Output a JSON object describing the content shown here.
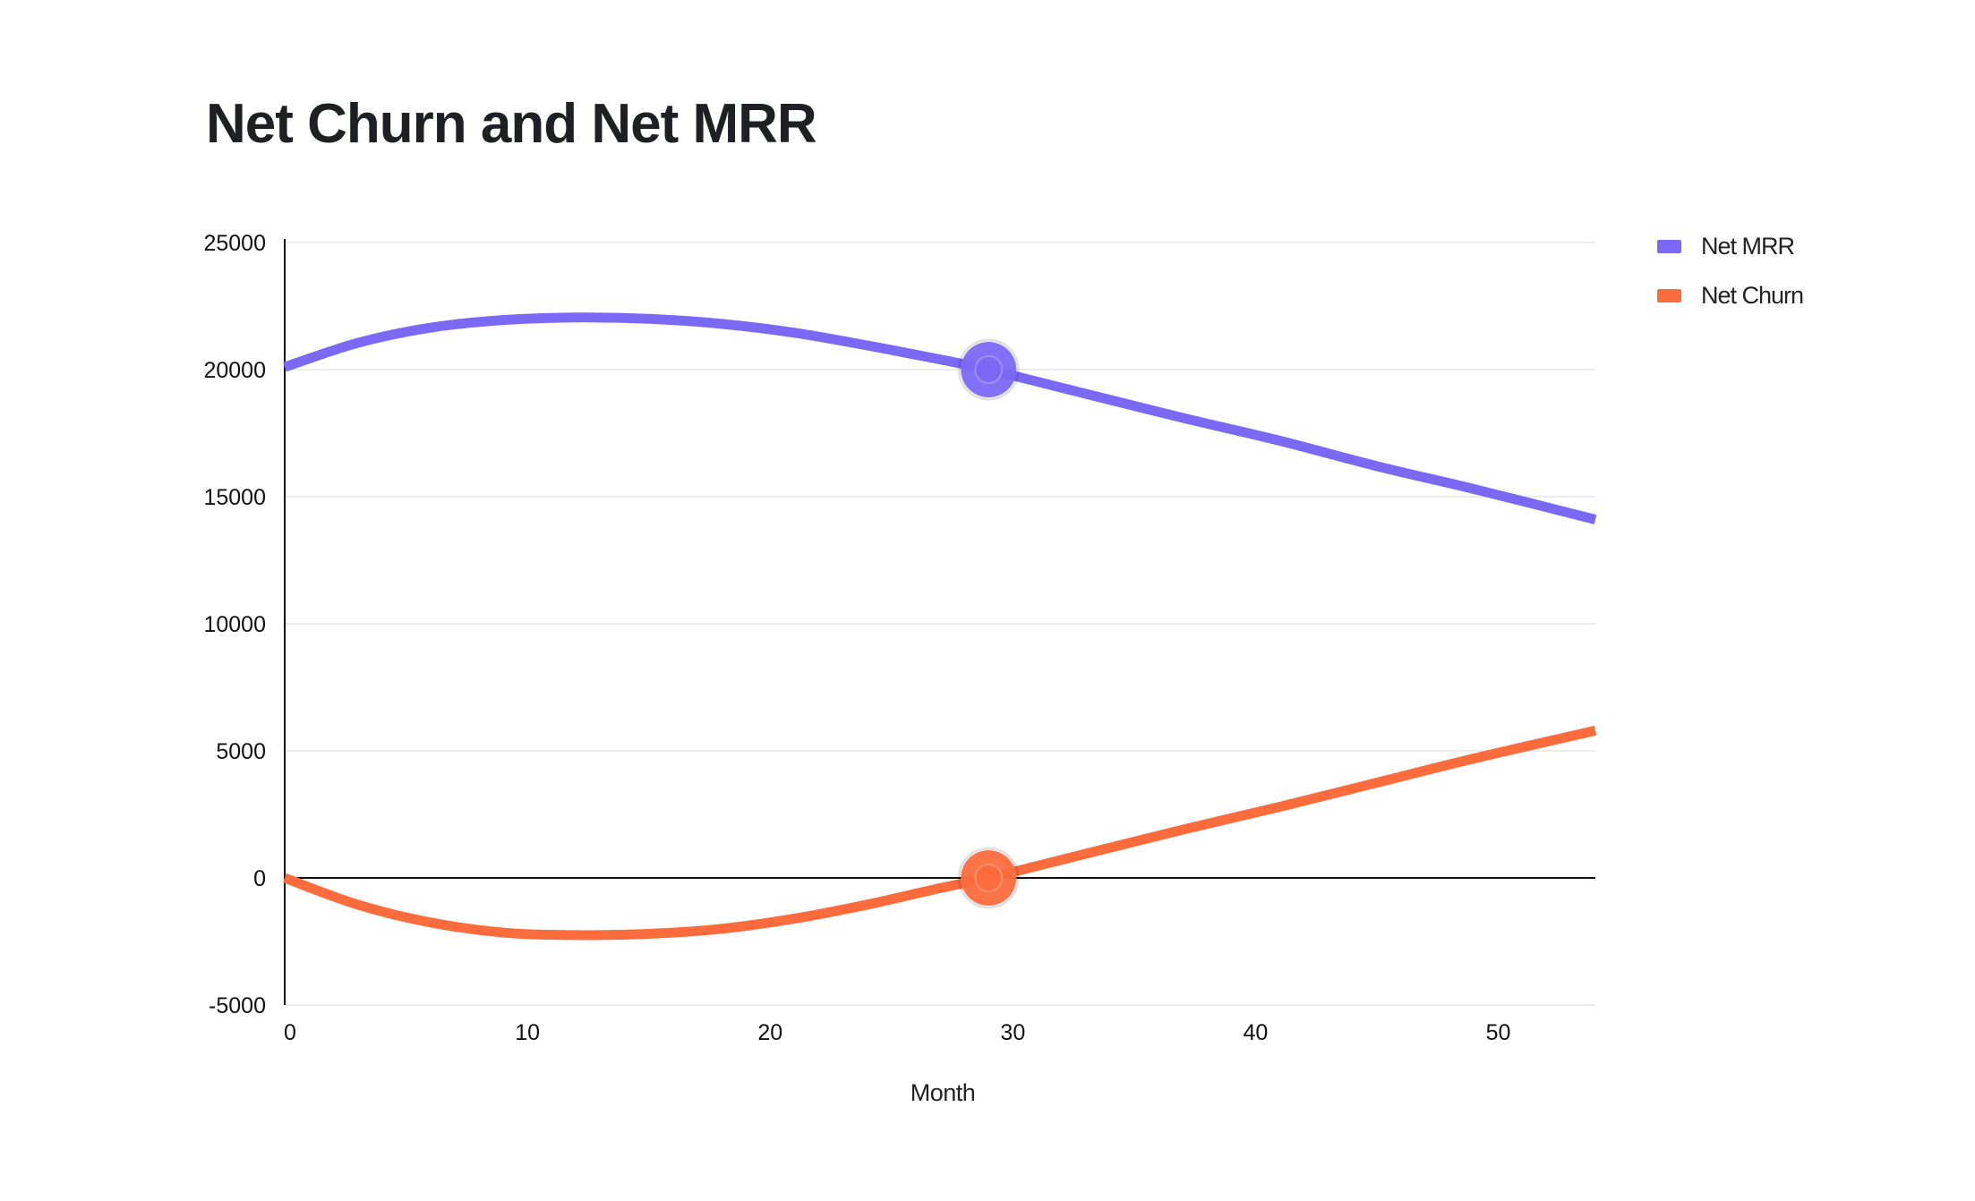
{
  "chart_data": {
    "type": "line",
    "title": "Net Churn and Net MRR",
    "xlabel": "Month",
    "ylabel": "",
    "xlim": [
      0,
      54
    ],
    "ylim": [
      -5000,
      25000
    ],
    "xticks": [
      0,
      10,
      20,
      30,
      40,
      50
    ],
    "xtick_labels": [
      "0",
      "10",
      "20",
      "30",
      "40",
      "50"
    ],
    "yticks": [
      25000,
      20000,
      15000,
      10000,
      5000,
      0,
      -5000
    ],
    "ytick_labels": [
      "25000",
      "20000",
      "15000",
      "10000",
      "5000",
      "0",
      "-5000"
    ],
    "grid": "horizontal",
    "legend_position": "right",
    "series": [
      {
        "name": "Net MRR",
        "color": "#7B68F5",
        "x": [
          0,
          3,
          6,
          9,
          12,
          15,
          18,
          21,
          24,
          27,
          29,
          33,
          37,
          41,
          45,
          49,
          54
        ],
        "y": [
          20100,
          21050,
          21650,
          21950,
          22050,
          22000,
          21800,
          21450,
          20950,
          20400,
          20000,
          19050,
          18100,
          17200,
          16200,
          15300,
          14100
        ],
        "highlight": {
          "x": 29,
          "y": 20000
        }
      },
      {
        "name": "Net Churn",
        "color": "#FB6B3C",
        "x": [
          0,
          3,
          6,
          9,
          12,
          15,
          18,
          21,
          24,
          27,
          29,
          33,
          37,
          41,
          45,
          49,
          54
        ],
        "y": [
          0,
          -1050,
          -1750,
          -2150,
          -2250,
          -2200,
          -2000,
          -1600,
          -1050,
          -400,
          0,
          950,
          1900,
          2800,
          3750,
          4700,
          5800
        ],
        "highlight": {
          "x": 29,
          "y": 0
        }
      }
    ]
  }
}
